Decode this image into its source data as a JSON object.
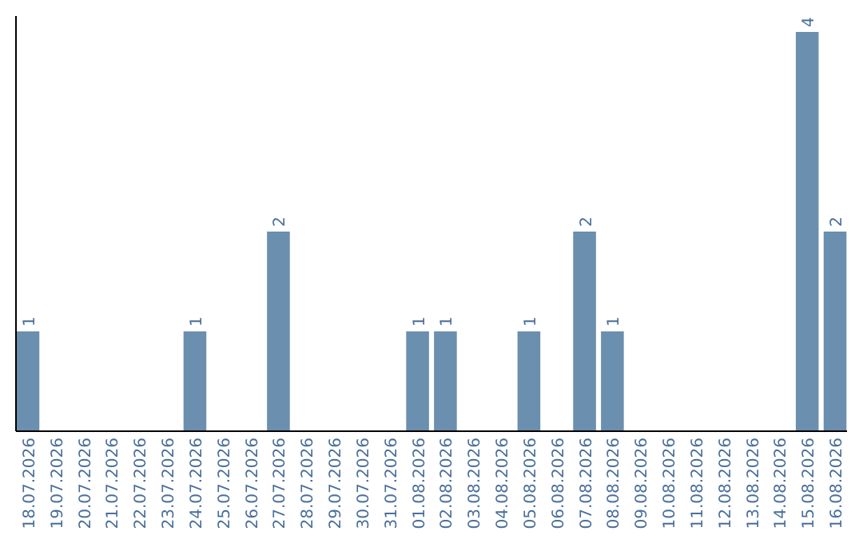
{
  "chart_data": {
    "type": "bar",
    "categories": [
      "18.07.2026",
      "19.07.2026",
      "20.07.2026",
      "21.07.2026",
      "22.07.2026",
      "23.07.2026",
      "24.07.2026",
      "25.07.2026",
      "26.07.2026",
      "27.07.2026",
      "28.07.2026",
      "29.07.2026",
      "30.07.2026",
      "31.07.2026",
      "01.08.2026",
      "02.08.2026",
      "03.08.2026",
      "04.08.2026",
      "05.08.2026",
      "06.08.2026",
      "07.08.2026",
      "08.08.2026",
      "09.08.2026",
      "10.08.2026",
      "11.08.2026",
      "12.08.2026",
      "13.08.2026",
      "14.08.2026",
      "15.08.2026",
      "16.08.2026"
    ],
    "values": [
      1,
      0,
      0,
      0,
      0,
      0,
      1,
      0,
      0,
      2,
      0,
      0,
      0,
      0,
      1,
      1,
      0,
      0,
      1,
      0,
      2,
      1,
      0,
      0,
      0,
      0,
      0,
      0,
      4,
      2
    ],
    "value_labels": [
      "1",
      null,
      null,
      null,
      null,
      null,
      "1",
      null,
      null,
      "2",
      null,
      null,
      null,
      null,
      "1",
      "1",
      null,
      null,
      "1",
      null,
      "2",
      "1",
      null,
      null,
      null,
      null,
      null,
      null,
      "4",
      "2"
    ],
    "color": "#6b8fae",
    "ylim": [
      0,
      4.16
    ],
    "tick_labels": "x"
  }
}
